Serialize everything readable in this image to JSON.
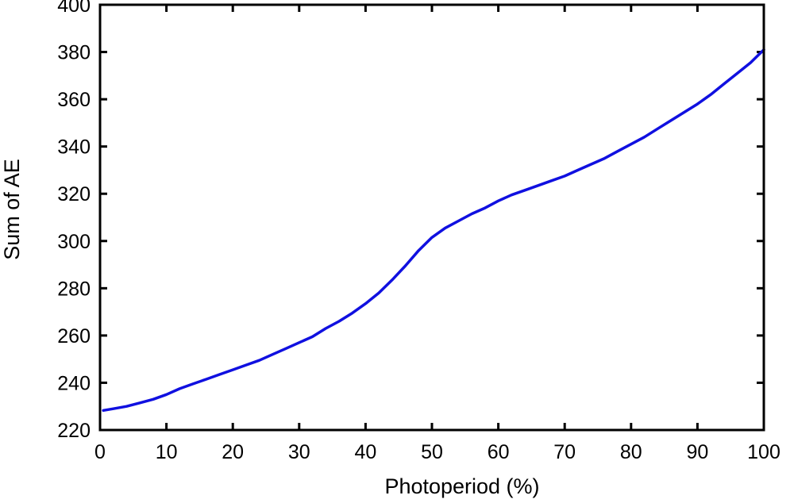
{
  "chart_data": {
    "type": "line",
    "title": "",
    "xlabel": "Photoperiod (%)",
    "ylabel": "Sum of AE",
    "xlim": [
      0,
      100
    ],
    "ylim": [
      220,
      400
    ],
    "xticks": [
      0,
      10,
      20,
      30,
      40,
      50,
      60,
      70,
      80,
      90,
      100
    ],
    "yticks": [
      220,
      240,
      260,
      280,
      300,
      320,
      340,
      360,
      380,
      400
    ],
    "grid": false,
    "legend": "none",
    "series": [
      {
        "color": "#1010e0",
        "x": [
          0.5,
          2,
          4,
          6,
          8,
          10,
          12,
          14,
          16,
          18,
          20,
          22,
          24,
          26,
          28,
          30,
          32,
          34,
          36,
          38,
          40,
          42,
          44,
          46,
          48,
          50,
          52,
          54,
          56,
          58,
          60,
          62,
          64,
          66,
          68,
          70,
          72,
          74,
          76,
          78,
          80,
          82,
          84,
          86,
          88,
          90,
          92,
          94,
          96,
          98,
          100
        ],
        "y": [
          228.3,
          229,
          230,
          231.5,
          233,
          235,
          237.5,
          239.5,
          241.5,
          243.5,
          245.5,
          247.5,
          249.5,
          252,
          254.5,
          257,
          259.5,
          263,
          266,
          269.5,
          273.5,
          278,
          283.5,
          289.5,
          296,
          301.5,
          305.5,
          308.5,
          311.5,
          314,
          317,
          319.5,
          321.5,
          323.5,
          325.5,
          327.5,
          330,
          332.5,
          335,
          338,
          341,
          344,
          347.5,
          351,
          354.5,
          358,
          362,
          366.5,
          371,
          375.5,
          381
        ]
      }
    ]
  }
}
